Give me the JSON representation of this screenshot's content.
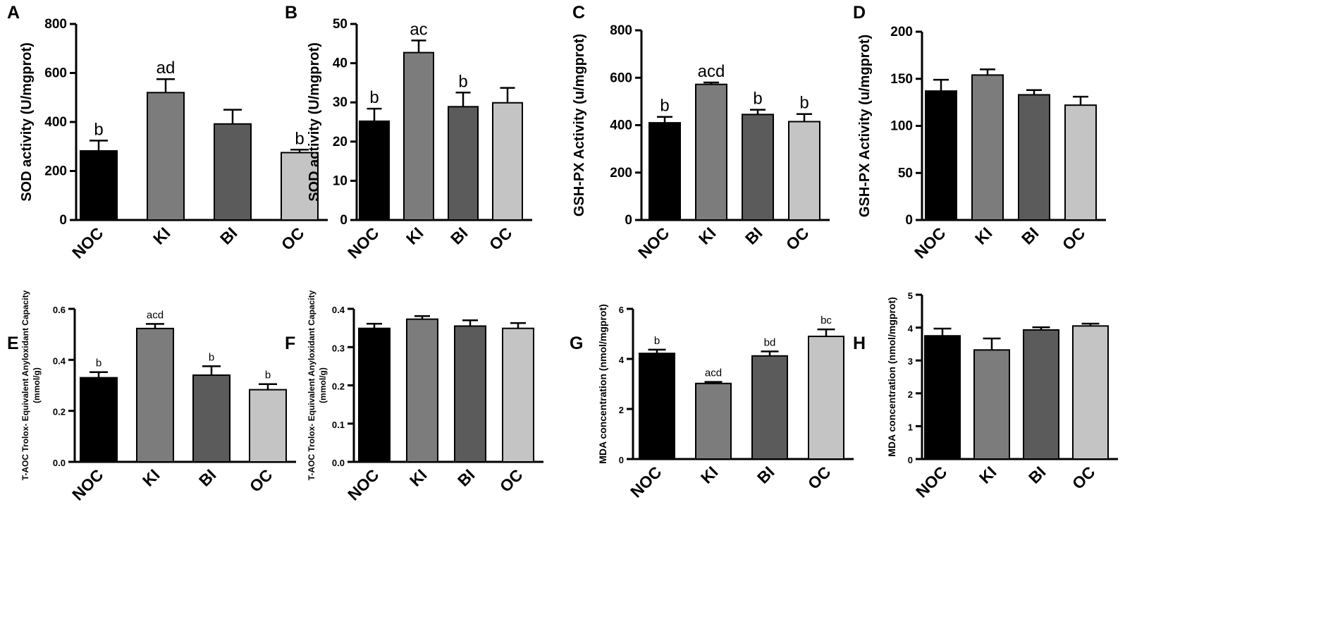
{
  "figure": {
    "categories": [
      "NOC",
      "KI",
      "BI",
      "OC"
    ],
    "colors": [
      "#000000",
      "#7c7c7c",
      "#5b5b5b",
      "#c4c4c4"
    ]
  },
  "chart_data": [
    {
      "panel": "A",
      "type": "bar",
      "ylabel": "SOD activity (U/mgprot)",
      "ylim": [
        0,
        800
      ],
      "yticks": [
        "0",
        "200",
        "400",
        "600",
        "800"
      ],
      "categories": [
        "NOC",
        "KI",
        "BI",
        "OC"
      ],
      "values": [
        282,
        520,
        392,
        275
      ],
      "errors": [
        42,
        55,
        58,
        12
      ],
      "significance": [
        "b",
        "ad",
        "",
        "b"
      ]
    },
    {
      "panel": "B",
      "type": "bar",
      "ylabel": "SOD activity (U/mgprot)",
      "ylim": [
        0,
        50
      ],
      "yticks": [
        "0",
        "10",
        "20",
        "30",
        "40",
        "50"
      ],
      "categories": [
        "NOC",
        "KI",
        "BI",
        "OC"
      ],
      "values": [
        25.2,
        42.7,
        28.9,
        29.9
      ],
      "errors": [
        3.2,
        3.1,
        3.6,
        3.8
      ],
      "significance": [
        "b",
        "ac",
        "b",
        ""
      ]
    },
    {
      "panel": "C",
      "type": "bar",
      "ylabel": "GSH-PX Activity (u/mgprot)",
      "ylim": [
        0,
        800
      ],
      "yticks": [
        "0",
        "200",
        "400",
        "600",
        "800"
      ],
      "categories": [
        "NOC",
        "KI",
        "BI",
        "OC"
      ],
      "values": [
        410,
        572,
        445,
        415
      ],
      "errors": [
        25,
        8,
        20,
        32
      ],
      "significance": [
        "b",
        "acd",
        "b",
        "b"
      ]
    },
    {
      "panel": "D",
      "type": "bar",
      "ylabel": "GSH-PX Activity (u/mgprot)",
      "ylim": [
        0,
        200
      ],
      "yticks": [
        "0",
        "50",
        "100",
        "150",
        "200"
      ],
      "categories": [
        "NOC",
        "KI",
        "BI",
        "OC"
      ],
      "values": [
        137,
        154,
        133,
        122
      ],
      "errors": [
        12,
        6,
        5,
        9
      ],
      "significance": [
        "",
        "",
        "",
        ""
      ]
    },
    {
      "panel": "E",
      "type": "bar",
      "ylabel_lines": [
        "T-AOC Trolox- Equivalent Anyloxidant Capacity",
        "(mmol/g)"
      ],
      "ylim": [
        0,
        0.6
      ],
      "yticks": [
        "0.0",
        "0.2",
        "0.4",
        "0.6"
      ],
      "categories": [
        "NOC",
        "KI",
        "BI",
        "OC"
      ],
      "values": [
        0.33,
        0.523,
        0.34,
        0.283
      ],
      "errors": [
        0.022,
        0.018,
        0.035,
        0.022
      ],
      "significance": [
        "b",
        "acd",
        "b",
        "b"
      ]
    },
    {
      "panel": "F",
      "type": "bar",
      "ylabel_lines": [
        "T-AOC Trolox- Equivalent Anyloxidant Capacity",
        "(mmol/g)"
      ],
      "ylim": [
        0,
        0.4
      ],
      "yticks": [
        "0.0",
        "0.1",
        "0.2",
        "0.3",
        "0.4"
      ],
      "categories": [
        "NOC",
        "KI",
        "BI",
        "OC"
      ],
      "values": [
        0.349,
        0.373,
        0.355,
        0.349
      ],
      "errors": [
        0.012,
        0.008,
        0.015,
        0.014
      ],
      "significance": [
        "",
        "",
        "",
        ""
      ]
    },
    {
      "panel": "G",
      "type": "bar",
      "ylabel": "MDA concentration (nmol/mgprot)",
      "ylim": [
        0,
        6
      ],
      "yticks": [
        "0",
        "2",
        "4",
        "6"
      ],
      "categories": [
        "NOC",
        "KI",
        "BI",
        "OC"
      ],
      "values": [
        4.22,
        3.02,
        4.12,
        4.9
      ],
      "errors": [
        0.15,
        0.06,
        0.18,
        0.28
      ],
      "significance": [
        "b",
        "acd",
        "bd",
        "bc"
      ]
    },
    {
      "panel": "H",
      "type": "bar",
      "ylabel": "MDA concentration (nmol/mgprot)",
      "ylim": [
        0,
        5
      ],
      "yticks": [
        "0",
        "1",
        "2",
        "3",
        "4",
        "5"
      ],
      "categories": [
        "NOC",
        "KI",
        "BI",
        "OC"
      ],
      "values": [
        3.75,
        3.32,
        3.93,
        4.05
      ],
      "errors": [
        0.22,
        0.35,
        0.08,
        0.07
      ],
      "significance": [
        "",
        "",
        "",
        ""
      ]
    }
  ]
}
